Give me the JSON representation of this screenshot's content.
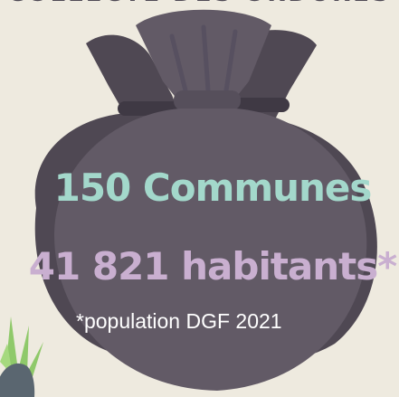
{
  "header": {
    "title_partial": "COLLECTE DES ORDURES"
  },
  "stats": {
    "communes": "150 Communes",
    "habitants": "41 821 habitants*"
  },
  "footnote": "*population DGF 2021",
  "colors": {
    "background": "#eeeadf",
    "bag_dark": "#4f4853",
    "bag_front": "#625a66",
    "communes_text": "#a3d8cb",
    "habitants_text": "#c9afd0",
    "grass": "#8fc96a"
  },
  "icons": [
    "garbage-bag-icon",
    "grass-icon",
    "stone-icon"
  ]
}
